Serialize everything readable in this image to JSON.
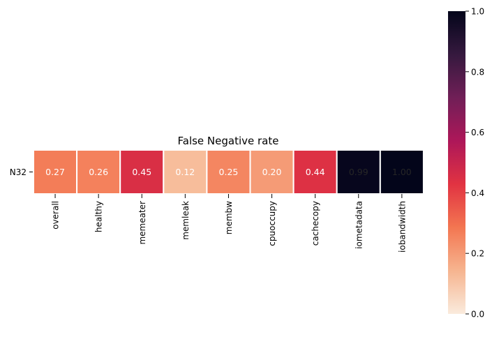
{
  "chart_data": {
    "type": "heatmap",
    "title": "False Negative rate",
    "rows": [
      "N32"
    ],
    "columns": [
      "overall",
      "healthy",
      "memeater",
      "memleak",
      "membw",
      "cpuoccupy",
      "cachecopy",
      "iometadata",
      "iobandwidth"
    ],
    "values": [
      [
        0.27,
        0.26,
        0.45,
        0.12,
        0.25,
        0.2,
        0.44,
        0.99,
        1.0
      ]
    ],
    "cell_labels": [
      [
        "0.27",
        "0.26",
        "0.45",
        "0.12",
        "0.25",
        "0.20",
        "0.44",
        "0.99",
        "1.00"
      ]
    ],
    "colorbar": {
      "range": [
        0,
        1
      ],
      "ticks": [
        "0.0",
        "0.2",
        "0.4",
        "0.6",
        "0.8",
        "1.0"
      ],
      "colormap": "rocket_r",
      "colors": [
        "#faebdd",
        "#f6b48f",
        "#f37651",
        "#e13342",
        "#ad1759",
        "#701f57",
        "#35193e",
        "#03051a"
      ]
    }
  }
}
